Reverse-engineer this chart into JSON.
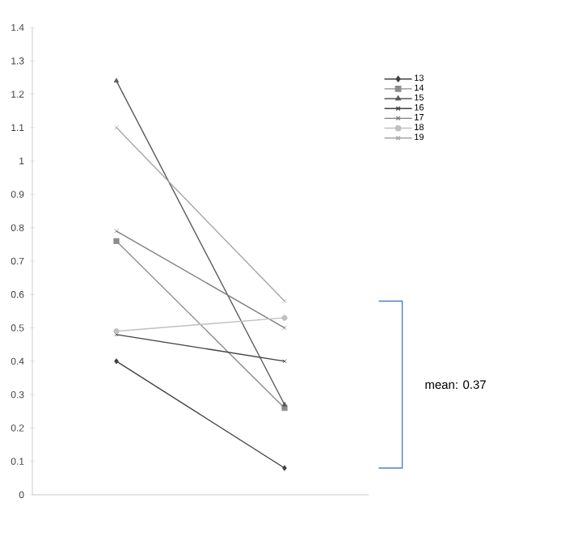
{
  "chart_data": {
    "type": "line",
    "categories": [
      null,
      null
    ],
    "series": [
      {
        "name": "13",
        "color": "#404040",
        "marker": "diamond",
        "values": [
          0.4,
          0.08
        ]
      },
      {
        "name": "14",
        "color": "#8c8c8c",
        "marker": "square",
        "values": [
          0.76,
          0.26
        ]
      },
      {
        "name": "15",
        "color": "#595959",
        "marker": "triangle",
        "values": [
          1.24,
          0.27
        ]
      },
      {
        "name": "16",
        "color": "#404040",
        "marker": "cross",
        "values": [
          0.48,
          0.4
        ]
      },
      {
        "name": "17",
        "color": "#7f7f7f",
        "marker": "cross",
        "values": [
          0.79,
          0.5
        ]
      },
      {
        "name": "18",
        "color": "#c0c0c0",
        "marker": "circle",
        "values": [
          0.49,
          0.53
        ]
      },
      {
        "name": "19",
        "color": "#a6a6a6",
        "marker": "cross",
        "values": [
          1.1,
          0.58
        ]
      }
    ],
    "ylim": [
      0,
      1.4
    ],
    "yticks": [
      0,
      0.1,
      0.2,
      0.3,
      0.4,
      0.5,
      0.6,
      0.7,
      0.8,
      0.9,
      1,
      1.1,
      1.2,
      1.3,
      1.4
    ],
    "grid": false,
    "legend": "right",
    "annotations": [
      "mean: 0.37"
    ]
  }
}
